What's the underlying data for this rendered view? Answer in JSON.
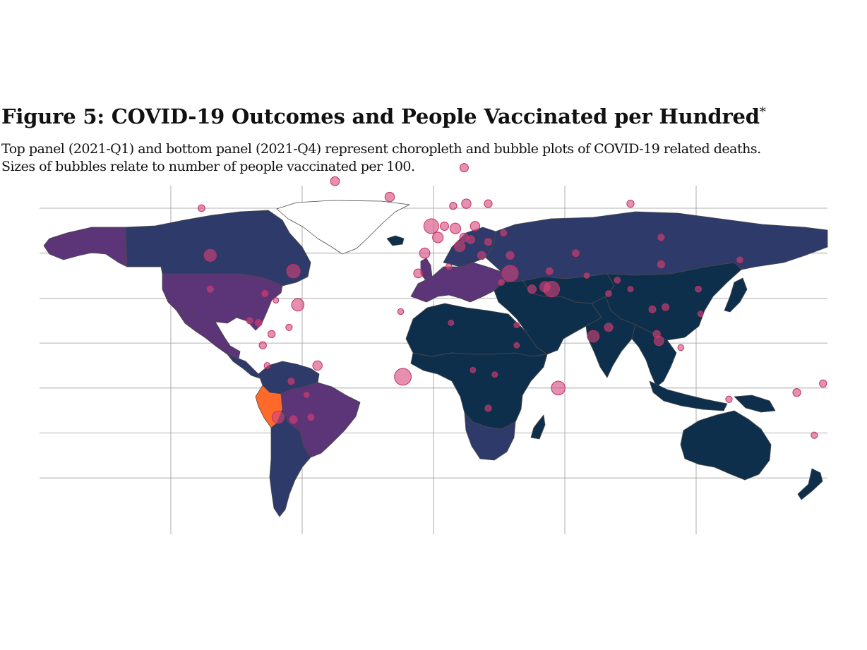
{
  "figure": {
    "title": "Figure 5: COVID-19 Outcomes and People Vaccinated per Hundred",
    "title_marker": "*",
    "subtitle_line1": "Top panel (2021-Q1) and bottom panel (2021-Q4) represent choropleth and bubble plots of COVID-19 related deaths.",
    "subtitle_line2": "Sizes of bubbles relate to number of people vaccinated per 100."
  },
  "colors": {
    "ocean": "#ffffff",
    "gridline": "#9a9a9a",
    "border": "#4a4a4a",
    "deaths_low": "#0e2f4c",
    "deaths_mid_low": "#2e3a6a",
    "deaths_mid": "#5c3478",
    "deaths_high": "#ff6a2a",
    "bubble_fill": "#d6457b",
    "bubble_stroke": "#c2305f"
  },
  "map": {
    "grid": {
      "lon": [
        -120,
        -60,
        0,
        60,
        120
      ],
      "lat": [
        60,
        40,
        20,
        0,
        -20,
        -40,
        -60
      ]
    },
    "regions": [
      {
        "id": "greenland",
        "level": "none"
      },
      {
        "id": "alaska",
        "level": "mid"
      },
      {
        "id": "canada",
        "level": "mid_low"
      },
      {
        "id": "usa",
        "level": "mid"
      },
      {
        "id": "mexico",
        "level": "mid"
      },
      {
        "id": "central-america",
        "level": "mid_low"
      },
      {
        "id": "colombia-venezuela",
        "level": "mid_low"
      },
      {
        "id": "brazil",
        "level": "mid"
      },
      {
        "id": "peru",
        "level": "high"
      },
      {
        "id": "southern-cone",
        "level": "mid_low"
      },
      {
        "id": "europe",
        "level": "mid"
      },
      {
        "id": "russia",
        "level": "mid_low"
      },
      {
        "id": "north-africa",
        "level": "low"
      },
      {
        "id": "sub-saharan-africa",
        "level": "low"
      },
      {
        "id": "southern-africa",
        "level": "mid_low"
      },
      {
        "id": "madagascar",
        "level": "low"
      },
      {
        "id": "middle-east",
        "level": "low"
      },
      {
        "id": "central-asia",
        "level": "low"
      },
      {
        "id": "china-mongolia",
        "level": "low"
      },
      {
        "id": "india",
        "level": "low"
      },
      {
        "id": "southeast-asia",
        "level": "low"
      },
      {
        "id": "japan",
        "level": "low"
      },
      {
        "id": "indonesia",
        "level": "low"
      },
      {
        "id": "new-guinea",
        "level": "low"
      },
      {
        "id": "australia",
        "level": "low"
      },
      {
        "id": "new-zealand",
        "level": "low"
      },
      {
        "id": "iceland",
        "level": "low"
      },
      {
        "id": "uk-ireland",
        "level": "mid"
      },
      {
        "id": "scandinavia",
        "level": "mid_low"
      }
    ],
    "bubbles": [
      {
        "lon": -1,
        "lat": 52,
        "vacc": 48
      },
      {
        "lon": 2,
        "lat": 47,
        "vacc": 20
      },
      {
        "lon": -4,
        "lat": 40,
        "vacc": 18
      },
      {
        "lon": 10,
        "lat": 51,
        "vacc": 20
      },
      {
        "lon": 12,
        "lat": 43,
        "vacc": 20
      },
      {
        "lon": 19,
        "lat": 52,
        "vacc": 14
      },
      {
        "lon": 15,
        "lat": 62,
        "vacc": 14
      },
      {
        "lon": 25,
        "lat": 62,
        "vacc": 8
      },
      {
        "lon": 9,
        "lat": 61,
        "vacc": 6
      },
      {
        "lon": 32,
        "lat": 49,
        "vacc": 4
      },
      {
        "lon": 25,
        "lat": 45,
        "vacc": 6
      },
      {
        "lon": 22,
        "lat": 39,
        "vacc": 9
      },
      {
        "lon": 14,
        "lat": 47,
        "vacc": 11
      },
      {
        "lon": 5,
        "lat": 52,
        "vacc": 10
      },
      {
        "lon": 17,
        "lat": 46,
        "vacc": 9
      },
      {
        "lon": 35,
        "lat": 39,
        "vacc": 8
      },
      {
        "lon": 35,
        "lat": 31,
        "vacc": 60
      },
      {
        "lon": 54,
        "lat": 24,
        "vacc": 55
      },
      {
        "lon": 45,
        "lat": 24,
        "vacc": 10
      },
      {
        "lon": 51,
        "lat": 25,
        "vacc": 20
      },
      {
        "lon": 53,
        "lat": 32,
        "vacc": 5
      },
      {
        "lon": 65,
        "lat": 40,
        "vacc": 5
      },
      {
        "lon": 80,
        "lat": 22,
        "vacc": 3
      },
      {
        "lon": 84,
        "lat": 28,
        "vacc": 3
      },
      {
        "lon": 90,
        "lat": 24,
        "vacc": 2
      },
      {
        "lon": 70,
        "lat": 30,
        "vacc": 2
      },
      {
        "lon": 104,
        "lat": 35,
        "vacc": 6
      },
      {
        "lon": 104,
        "lat": 47,
        "vacc": 4
      },
      {
        "lon": 100,
        "lat": 15,
        "vacc": 5
      },
      {
        "lon": 106,
        "lat": 16,
        "vacc": 5
      },
      {
        "lon": 102,
        "lat": 4,
        "vacc": 6
      },
      {
        "lon": 103,
        "lat": 1,
        "vacc": 15
      },
      {
        "lon": 121,
        "lat": 24,
        "vacc": 3
      },
      {
        "lon": 122,
        "lat": 13,
        "vacc": 2
      },
      {
        "lon": 113,
        "lat": -2,
        "vacc": 3
      },
      {
        "lon": 140,
        "lat": 37,
        "vacc": 3
      },
      {
        "lon": 135,
        "lat": -25,
        "vacc": 4
      },
      {
        "lon": 174,
        "lat": -41,
        "vacc": 4
      },
      {
        "lon": 178,
        "lat": -18,
        "vacc": 6
      },
      {
        "lon": 90,
        "lat": 62,
        "vacc": 6
      },
      {
        "lon": -102,
        "lat": 39,
        "vacc": 28
      },
      {
        "lon": -106,
        "lat": 60,
        "vacc": 5
      },
      {
        "lon": -102,
        "lat": 24,
        "vacc": 4
      },
      {
        "lon": -64,
        "lat": 32,
        "vacc": 38
      },
      {
        "lon": -62,
        "lat": 17,
        "vacc": 30
      },
      {
        "lon": -72,
        "lat": 19,
        "vacc": 2
      },
      {
        "lon": -77,
        "lat": 22,
        "vacc": 4
      },
      {
        "lon": -84,
        "lat": 10,
        "vacc": 4
      },
      {
        "lon": -80,
        "lat": 9,
        "vacc": 5
      },
      {
        "lon": -74,
        "lat": 4,
        "vacc": 6
      },
      {
        "lon": -66,
        "lat": 7,
        "vacc": 4
      },
      {
        "lon": -78,
        "lat": -1,
        "vacc": 6
      },
      {
        "lon": -76,
        "lat": -10,
        "vacc": 3
      },
      {
        "lon": -65,
        "lat": -17,
        "vacc": 4
      },
      {
        "lon": -53,
        "lat": -10,
        "vacc": 14
      },
      {
        "lon": -58,
        "lat": -23,
        "vacc": 2
      },
      {
        "lon": -64,
        "lat": -34,
        "vacc": 8
      },
      {
        "lon": -71,
        "lat": -33,
        "vacc": 28
      },
      {
        "lon": -56,
        "lat": -33,
        "vacc": 4
      },
      {
        "lon": -14,
        "lat": -15,
        "vacc": 65
      },
      {
        "lon": 57,
        "lat": -20,
        "vacc": 40
      },
      {
        "lon": -20,
        "lat": 65,
        "vacc": 14
      },
      {
        "lon": -45,
        "lat": 72,
        "vacc": 12
      },
      {
        "lon": 14,
        "lat": 78,
        "vacc": 10
      },
      {
        "lon": 7,
        "lat": 34,
        "vacc": 3
      },
      {
        "lon": 31,
        "lat": 27,
        "vacc": 3
      },
      {
        "lon": 8,
        "lat": 9,
        "vacc": 2
      },
      {
        "lon": -15,
        "lat": 14,
        "vacc": 3
      },
      {
        "lon": -7,
        "lat": 31,
        "vacc": 12
      },
      {
        "lon": 38,
        "lat": 8,
        "vacc": 2
      },
      {
        "lon": 38,
        "lat": -1,
        "vacc": 2
      },
      {
        "lon": 25,
        "lat": -29,
        "vacc": 4
      },
      {
        "lon": 18,
        "lat": -12,
        "vacc": 2
      },
      {
        "lon": 28,
        "lat": -14,
        "vacc": 2
      },
      {
        "lon": 80,
        "lat": 7,
        "vacc": 10
      },
      {
        "lon": 73,
        "lat": 3,
        "vacc": 26
      },
      {
        "lon": 166,
        "lat": -22,
        "vacc": 8
      }
    ]
  }
}
